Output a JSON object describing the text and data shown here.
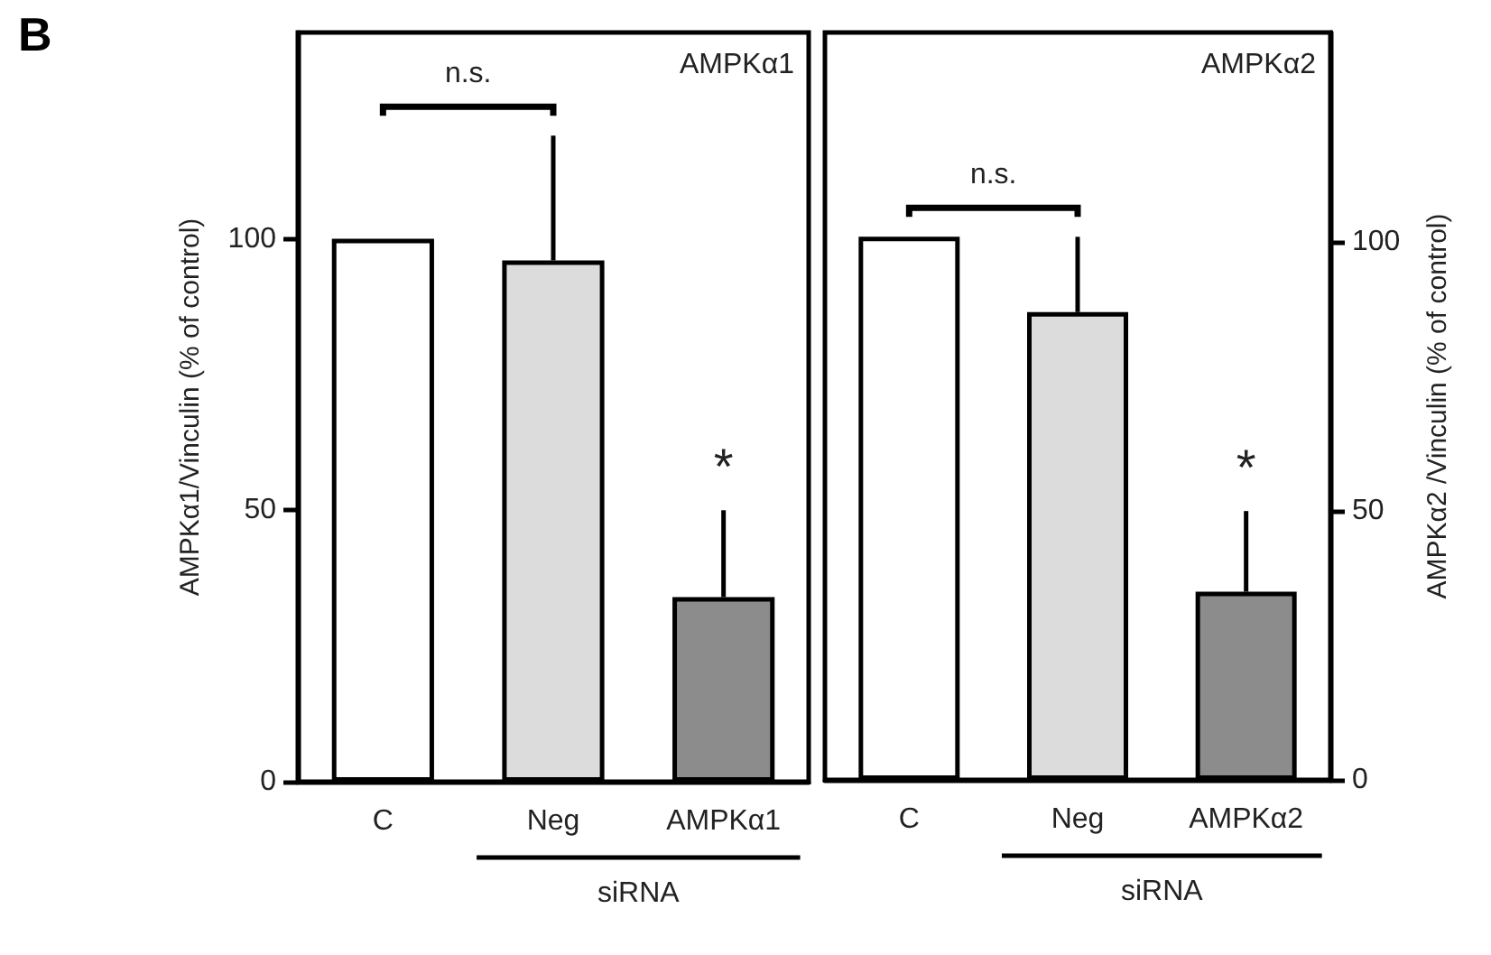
{
  "chart_data": [
    {
      "type": "bar",
      "title": "AMPKα1",
      "categories": [
        "C",
        "Neg",
        "AMPKα1"
      ],
      "xlabel": "siRNA",
      "ylabel": "AMPKα1/Vinculin (% of control)",
      "ylim": [
        0,
        138
      ],
      "yticks": [
        0,
        50,
        100
      ],
      "grid": false,
      "series": [
        {
          "values": [
            100,
            96,
            34
          ],
          "colors": [
            "#ffffff",
            "#dcdcdc",
            "#8c8c8c"
          ],
          "errors": [
            null,
            [
              96,
              119
            ],
            [
              34,
              50
            ]
          ]
        }
      ],
      "annotations": [
        "B",
        "n.s.",
        "*"
      ]
    },
    {
      "type": "bar",
      "title": "AMPKα2",
      "categories": [
        "C",
        "Neg",
        "AMPKα2"
      ],
      "xlabel": "siRNA",
      "y2label": "AMPKα2 /Vinculin (% of control)",
      "y2lim": [
        0,
        139
      ],
      "y2ticks": [
        0,
        50,
        100
      ],
      "grid": false,
      "series": [
        {
          "axis": "y2",
          "values": [
            101,
            87,
            35
          ],
          "colors": [
            "#ffffff",
            "#dcdcdc",
            "#8c8c8c"
          ],
          "errors": [
            null,
            [
              87,
              101
            ],
            [
              35,
              50
            ]
          ]
        }
      ],
      "annotations": [
        "n.s.",
        "*"
      ]
    }
  ]
}
